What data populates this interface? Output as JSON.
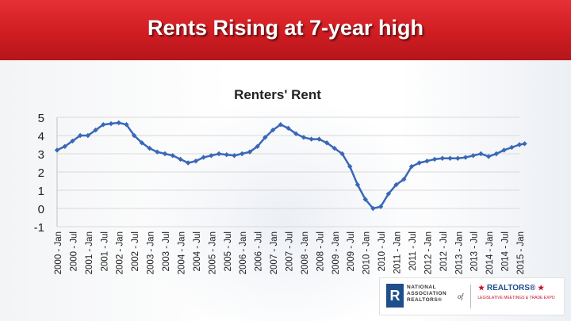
{
  "slide": {
    "title": "Rents Rising at 7-year high"
  },
  "logos": {
    "nar_lines": [
      "NATIONAL",
      "ASSOCIATION",
      "REALTORS®"
    ],
    "nar_of": "of",
    "realtors_word": "REALTORS®",
    "legislative_line": "LEGISLATIVE MEETINGS & TRADE EXPO"
  },
  "colors": {
    "banner": "#cf1d22",
    "series": "#3a68b8",
    "grid": "#d9d9d9"
  },
  "chart_data": {
    "type": "line",
    "title": "Renters' Rent",
    "xlabel": "",
    "ylabel": "",
    "ylim": [
      -1,
      5
    ],
    "yticks": [
      5,
      4,
      3,
      2,
      1,
      0,
      -1
    ],
    "grid": true,
    "legend": "none",
    "marker": "diamond",
    "x_tick_labels": [
      "2000 - Jan",
      "2000 - Jul",
      "2001 - Jan",
      "2001 - Jul",
      "2002 - Jan",
      "2002 - Jul",
      "2003 - Jan",
      "2003 - Jul",
      "2004 - Jan",
      "2004 - Jul",
      "2005 - Jan",
      "2005 - Jul",
      "2006 - Jan",
      "2006 - Jul",
      "2007 - Jan",
      "2007 - Jul",
      "2008 - Jan",
      "2008 - Jul",
      "2009 - Jan",
      "2009 - Jul",
      "2010 - Jan",
      "2010 - Jul",
      "2011 - Jan",
      "2011 - Jul",
      "2012 - Jan",
      "2012 - Jul",
      "2013 - Jan",
      "2013 - Jul",
      "2014 - Jan",
      "2014 - Jul",
      "2015 - Jan"
    ],
    "series": [
      {
        "x": [
          "2000-01",
          "2000-04",
          "2000-07",
          "2000-10",
          "2001-01",
          "2001-04",
          "2001-07",
          "2001-10",
          "2002-01",
          "2002-04",
          "2002-07",
          "2002-10",
          "2003-01",
          "2003-04",
          "2003-07",
          "2003-10",
          "2004-01",
          "2004-04",
          "2004-07",
          "2004-10",
          "2005-01",
          "2005-04",
          "2005-07",
          "2005-10",
          "2006-01",
          "2006-04",
          "2006-07",
          "2006-10",
          "2007-01",
          "2007-04",
          "2007-07",
          "2007-10",
          "2008-01",
          "2008-04",
          "2008-07",
          "2008-10",
          "2009-01",
          "2009-04",
          "2009-07",
          "2009-10",
          "2010-01",
          "2010-04",
          "2010-07",
          "2010-10",
          "2011-01",
          "2011-04",
          "2011-07",
          "2011-10",
          "2012-01",
          "2012-04",
          "2012-07",
          "2012-10",
          "2013-01",
          "2013-04",
          "2013-07",
          "2013-10",
          "2014-01",
          "2014-04",
          "2014-07",
          "2014-10",
          "2015-01",
          "2015-03"
        ],
        "values": [
          3.2,
          3.4,
          3.7,
          4.0,
          4.0,
          4.3,
          4.6,
          4.65,
          4.7,
          4.6,
          4.0,
          3.6,
          3.3,
          3.1,
          3.0,
          2.9,
          2.7,
          2.5,
          2.6,
          2.8,
          2.9,
          3.0,
          2.95,
          2.9,
          3.0,
          3.1,
          3.4,
          3.9,
          4.3,
          4.6,
          4.4,
          4.1,
          3.9,
          3.8,
          3.8,
          3.6,
          3.3,
          3.0,
          2.3,
          1.3,
          0.5,
          0.0,
          0.1,
          0.8,
          1.3,
          1.6,
          2.3,
          2.5,
          2.6,
          2.7,
          2.75,
          2.75,
          2.75,
          2.8,
          2.9,
          3.0,
          2.85,
          3.0,
          3.2,
          3.35,
          3.5,
          3.55
        ]
      }
    ]
  }
}
